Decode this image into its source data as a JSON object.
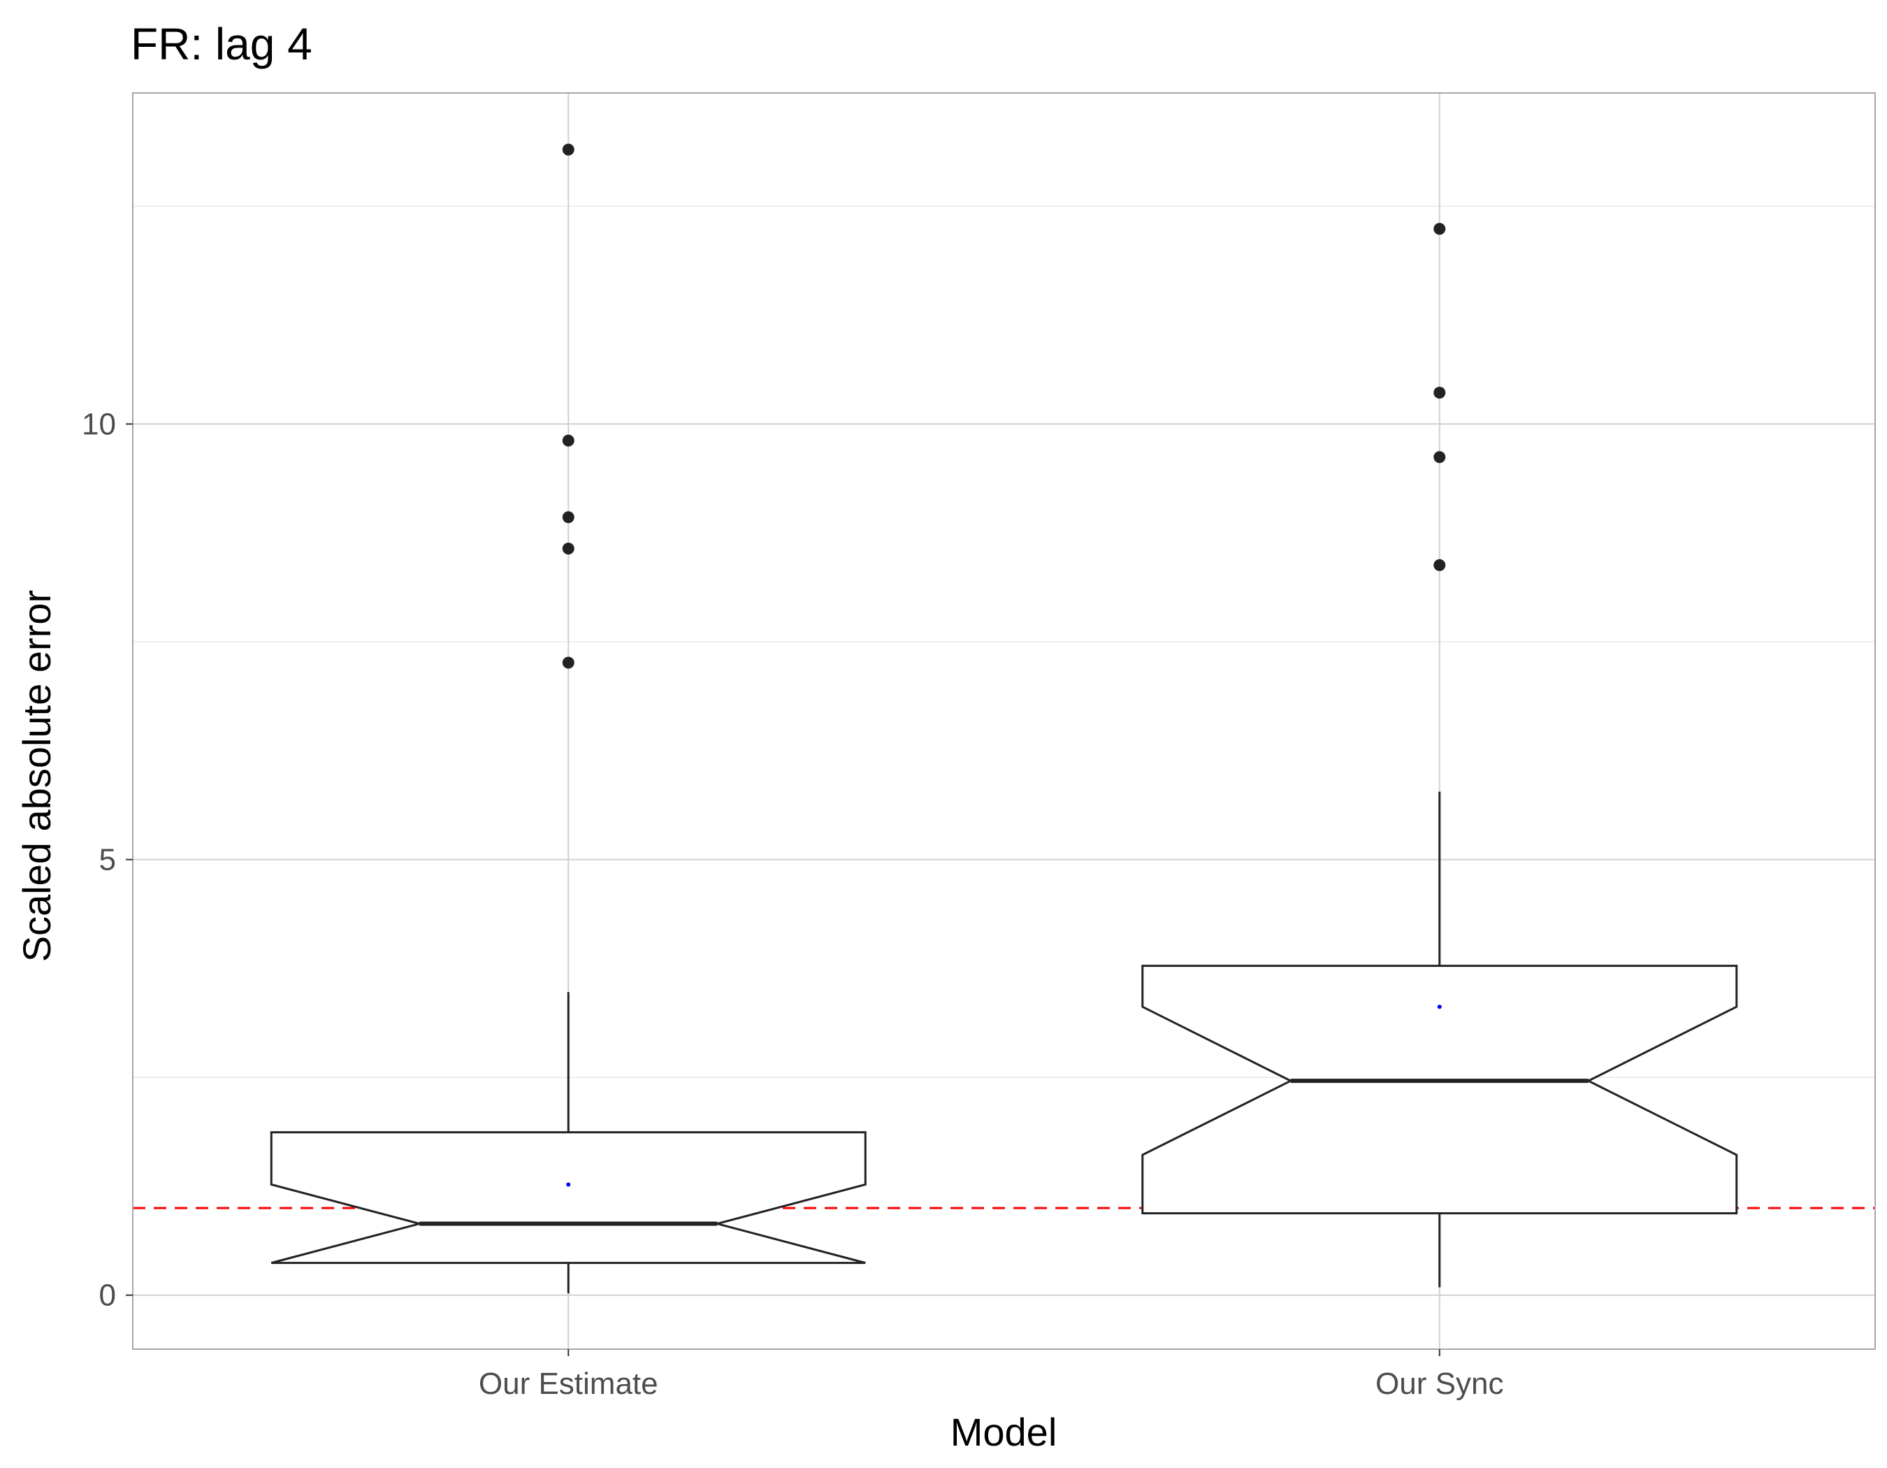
{
  "chart_data": {
    "type": "boxplot",
    "title": "FR: lag 4",
    "xlabel": "Model",
    "ylabel": "Scaled absolute error",
    "ylim": [
      -0.62,
      13.8
    ],
    "y_ticks": [
      0,
      5,
      10
    ],
    "y_minor_gridlines": [
      2.5,
      7.5,
      12.5
    ],
    "grid": true,
    "notched": true,
    "reference_line": {
      "y": 1.0,
      "color": "#ff0000",
      "style": "dashed"
    },
    "categories": [
      "Our Estimate",
      "Our Sync"
    ],
    "boxes": [
      {
        "category": "Our Estimate",
        "whisker_low": 0.02,
        "q1": 0.37,
        "notch_low": 0.37,
        "median": 0.82,
        "notch_high": 1.27,
        "q3": 1.87,
        "whisker_high": 3.48,
        "mean": 1.27,
        "outliers": [
          13.15,
          9.81,
          8.93,
          8.57,
          7.26
        ]
      },
      {
        "category": "Our Sync",
        "whisker_low": 0.09,
        "q1": 0.94,
        "notch_low": 1.61,
        "median": 2.46,
        "notch_high": 3.31,
        "q3": 3.78,
        "whisker_high": 5.78,
        "mean": 3.31,
        "outliers": [
          12.24,
          10.36,
          9.62,
          8.38
        ]
      }
    ],
    "colors": {
      "box_stroke": "#222222",
      "box_fill": "#ffffff",
      "outlier": "#222222",
      "mean_point": "#0000ff",
      "grid_major": "#d0d0d0",
      "grid_minor": "#e6e6e6",
      "panel_border": "#a6a6a6"
    }
  }
}
